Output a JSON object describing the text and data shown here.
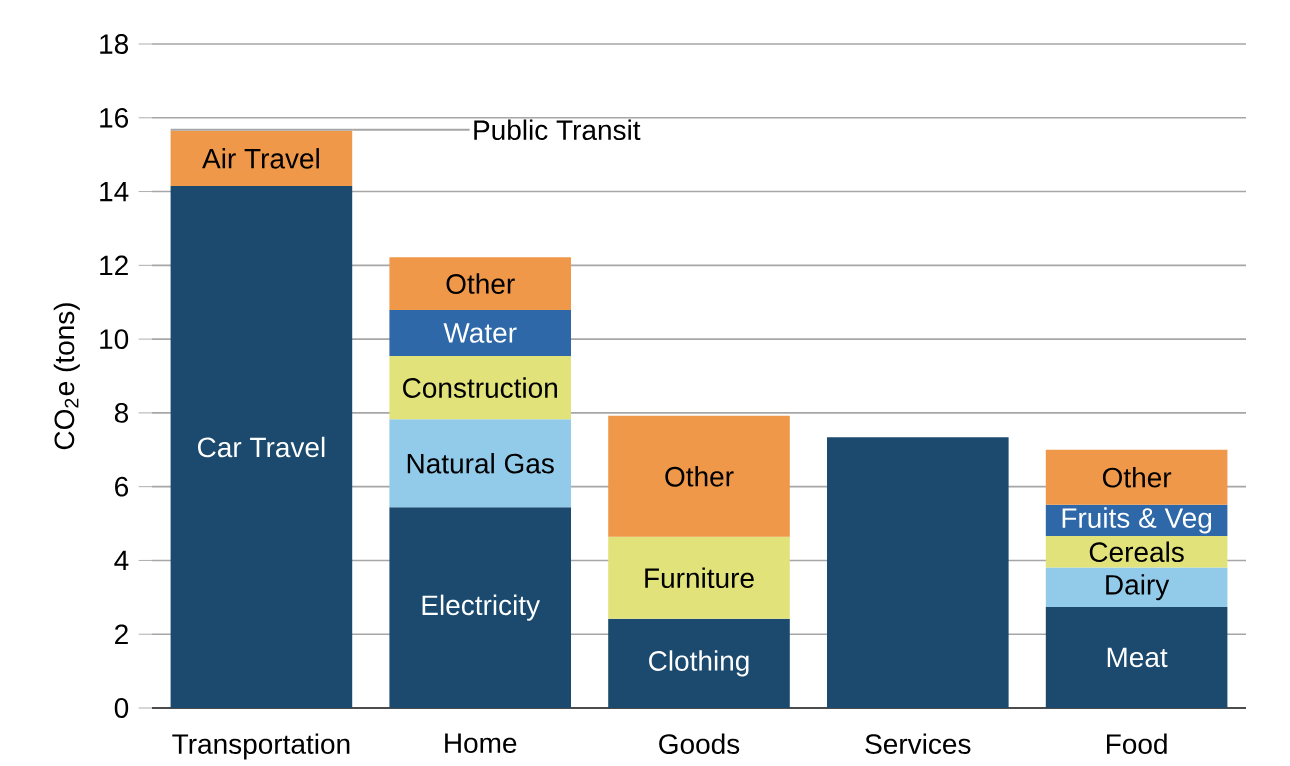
{
  "chart_data": {
    "type": "bar",
    "stacked": true,
    "ylabel": "CO$_{2}$e (tons)",
    "categories": [
      "Transportation",
      "Home",
      "Goods",
      "Services",
      "Food"
    ],
    "series": [
      {
        "values": [
          14.15,
          5.44,
          2.42,
          7.34,
          2.74
        ],
        "colors": [
          "#1b4a6e",
          "#1b4a6e",
          "#1b4a6e",
          "#1b4a6e",
          "#1b4a6e"
        ],
        "value_labels": [
          "Car Travel",
          "Electricity",
          "Clothing",
          null,
          "Meat"
        ]
      },
      {
        "values": [
          1.5,
          2.39,
          2.22,
          null,
          1.07
        ],
        "colors": [
          "#f0984a",
          "#92cbea",
          "#e1e27a",
          null,
          "#92cbea"
        ],
        "value_labels": [
          "Air Travel",
          "Natural Gas",
          "Furniture",
          null,
          "Dairy"
        ]
      },
      {
        "values": [
          0.05,
          1.71,
          3.28,
          null,
          0.85
        ],
        "colors": [
          "#a6a6a6",
          "#e1e27a",
          "#f0984a",
          null,
          "#e1e27a"
        ],
        "value_labels": [
          "Public Transit",
          "Construction",
          "Other",
          null,
          "Cereals"
        ]
      },
      {
        "values": [
          null,
          1.25,
          null,
          null,
          0.85
        ],
        "colors": [
          null,
          "#2e68a8",
          null,
          null,
          "#2e68a8"
        ],
        "value_labels": [
          null,
          "Water",
          null,
          null,
          "Fruits & Veg"
        ]
      },
      {
        "values": [
          null,
          1.43,
          null,
          null,
          1.49
        ],
        "colors": [
          null,
          "#f0984a",
          null,
          null,
          "#f0984a"
        ],
        "value_labels": [
          null,
          "Other",
          null,
          null,
          "Other"
        ]
      }
    ],
    "ylim": [
      0,
      18
    ],
    "yticks": [
      0,
      2,
      4,
      6,
      8,
      10,
      12,
      14,
      16,
      18
    ],
    "grid": "y"
  }
}
